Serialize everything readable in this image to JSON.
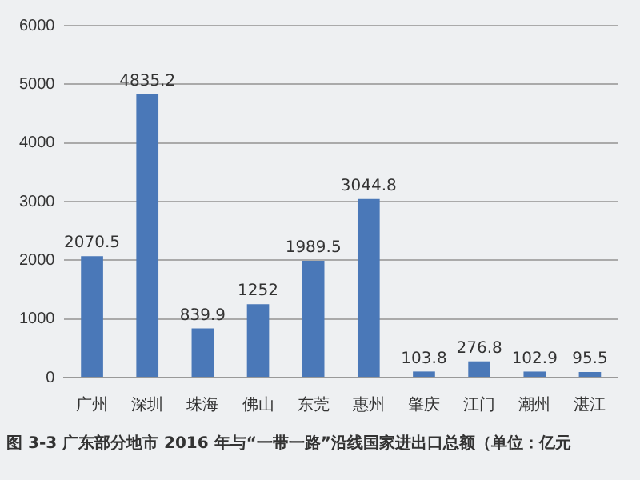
{
  "chart_data": {
    "type": "bar",
    "categories": [
      "广州",
      "深圳",
      "珠海",
      "佛山",
      "东莞",
      "惠州",
      "肇庆",
      "江门",
      "潮州",
      "湛江"
    ],
    "values": [
      2070.5,
      4835.2,
      839.9,
      1252,
      1989.5,
      3044.8,
      103.8,
      276.8,
      102.9,
      95.5
    ],
    "color": "#4a78b8",
    "ylim": [
      0,
      6000
    ],
    "yticks": [
      0,
      1000,
      2000,
      3000,
      4000,
      5000,
      6000
    ],
    "grid": "y",
    "data_labels": true,
    "annotations": [
      "图 3-3  广东部分地市 2016 年与“一带一路”沿线国家进出口总额（单位：亿元"
    ]
  }
}
